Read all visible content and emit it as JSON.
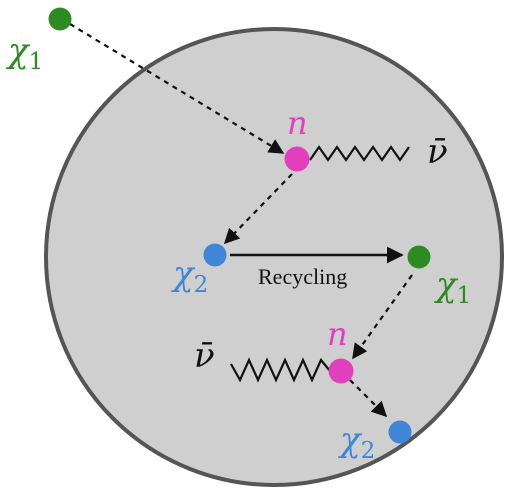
{
  "diagram": {
    "colors": {
      "background_disk": "#cfcfcf",
      "disk_border": "#555555",
      "chi1": "#2e8b22",
      "chi2": "#3f86d8",
      "neutron": "#e23fbf",
      "line": "#111111"
    },
    "labels": {
      "chi1_top": "χ",
      "chi1_top_sub": "1",
      "chi1_mid": "χ",
      "chi1_mid_sub": "1",
      "chi2_left": "χ",
      "chi2_left_sub": "2",
      "chi2_bottom": "χ",
      "chi2_bottom_sub": "2",
      "n_top": "n",
      "n_bottom": "n",
      "antineutrino_top": "ν̄",
      "antineutrino_bottom": "ν̄",
      "recycling": "Recycling"
    }
  }
}
